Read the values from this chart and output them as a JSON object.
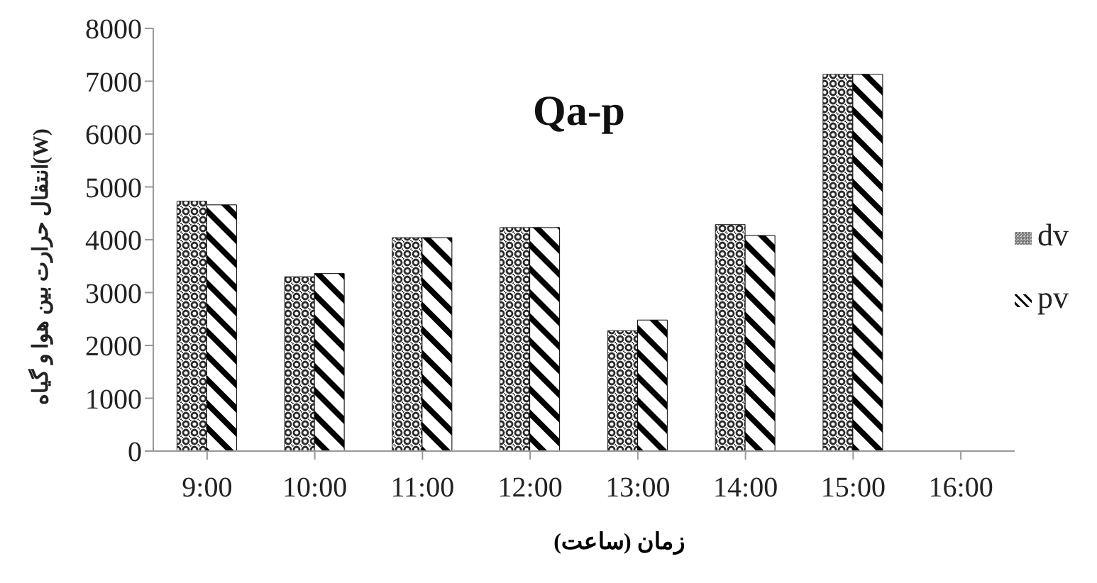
{
  "chart_data": {
    "type": "bar",
    "title": "Qa-p",
    "xlabel": "زمان (ساعت)",
    "ylabel": "انتقال حرارت بین هوا و گیاه(W)",
    "categories": [
      "9:00",
      "10:00",
      "11:00",
      "12:00",
      "13:00",
      "14:00",
      "15:00",
      "16:00"
    ],
    "series": [
      {
        "name": "dv",
        "color": "#2b2b2b",
        "values": [
          4730,
          3300,
          4040,
          4230,
          2280,
          4290,
          7130,
          null
        ]
      },
      {
        "name": "pv",
        "color": "#000000",
        "values": [
          4660,
          3360,
          4040,
          4230,
          2480,
          4080,
          7130,
          null
        ]
      }
    ],
    "ylim": [
      0,
      8000
    ],
    "yticks": [
      0,
      1000,
      2000,
      3000,
      4000,
      5000,
      6000,
      7000,
      8000
    ],
    "grid": false,
    "legend": "right"
  }
}
